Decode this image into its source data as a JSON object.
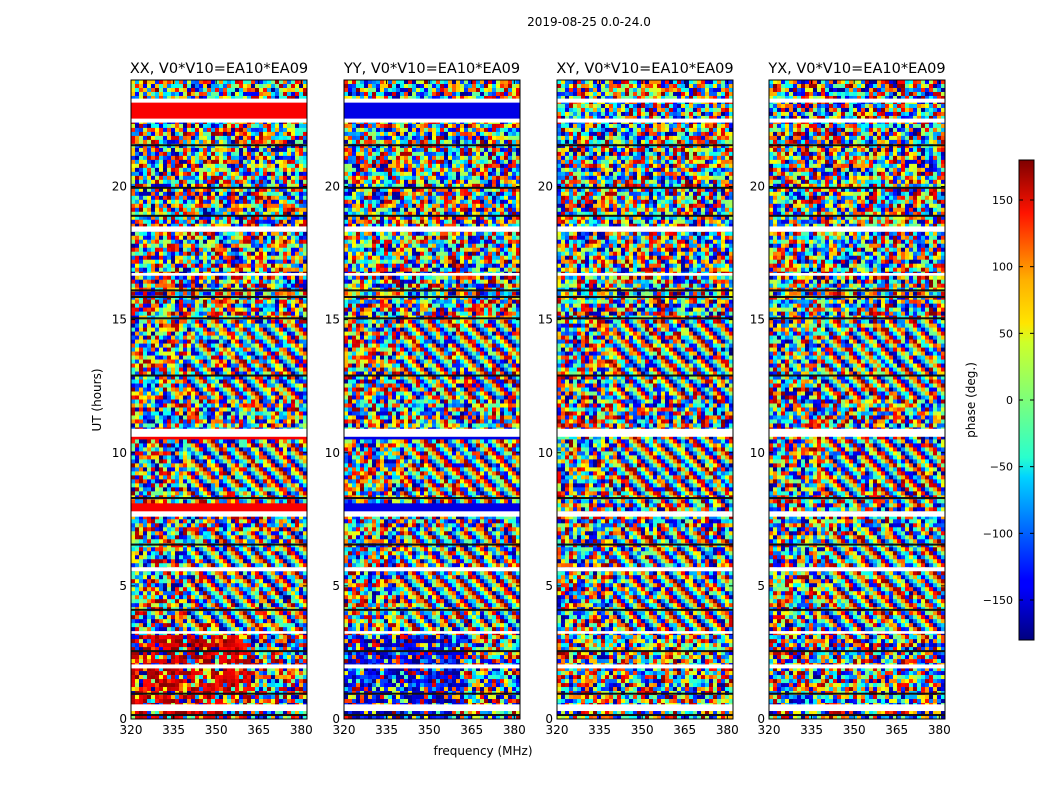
{
  "chart_data": {
    "type": "heatmap",
    "suptitle": "2019-08-25 0.0-24.0",
    "xlabel": "frequency (MHz)",
    "ylabel": "UT (hours)",
    "xlim": [
      320,
      382
    ],
    "ylim": [
      0,
      24
    ],
    "xticks": [
      320,
      335,
      350,
      365,
      380
    ],
    "yticks": [
      0,
      5,
      10,
      15,
      20
    ],
    "panels": [
      {
        "title": "XX, V0*V10=EA10*EA09",
        "pol": "XX"
      },
      {
        "title": "YY, V0*V10=EA10*EA09",
        "pol": "YY"
      },
      {
        "title": "XY, V0*V10=EA10*EA09",
        "pol": "XY"
      },
      {
        "title": "YX, V0*V10=EA10*EA09",
        "pol": "YX"
      }
    ],
    "colorbar": {
      "label": "phase (deg.)",
      "range": [
        -180,
        180
      ],
      "ticks": [
        150,
        100,
        50,
        0,
        -50,
        -100,
        -150
      ],
      "tick_labels": [
        "150",
        "100",
        "50",
        "0",
        "−50",
        "−100",
        "−150"
      ],
      "colormap": "jet"
    },
    "flagged_bands_ut": [
      [
        0.3,
        0.55
      ],
      [
        1.9,
        2.05
      ],
      [
        3.2,
        3.3
      ],
      [
        5.55,
        5.7
      ],
      [
        7.6,
        7.8
      ],
      [
        10.6,
        10.9
      ],
      [
        16.65,
        16.75
      ],
      [
        18.3,
        18.5
      ],
      [
        22.4,
        22.55
      ],
      [
        23.15,
        23.3
      ]
    ],
    "dark_lines_ut": [
      0.15,
      0.95,
      2.55,
      4.1,
      6.55,
      8.3,
      12.9,
      15.05,
      15.85,
      16.1,
      18.9,
      19.95,
      21.55
    ]
  }
}
